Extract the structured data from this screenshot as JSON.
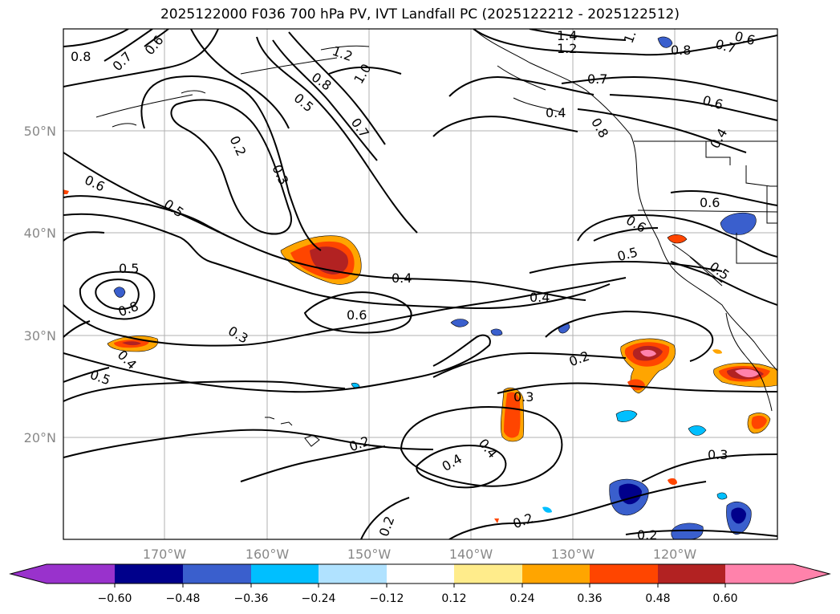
{
  "title": "2025122000 F036 700 hPa PV, IVT Landfall PC (2025122212 - 2025122512)",
  "axes": {
    "lat_labels": [
      "50°N",
      "40°N",
      "30°N",
      "20°N"
    ],
    "lon_labels": [
      "170°W",
      "160°W",
      "150°W",
      "140°W",
      "130°W",
      "120°W"
    ]
  },
  "colorbar": {
    "ticks": [
      "−0.60",
      "−0.48",
      "−0.36",
      "−0.24",
      "−0.12",
      "0.12",
      "0.24",
      "0.36",
      "0.48",
      "0.60"
    ],
    "colors": [
      "#9932cc",
      "#00008b",
      "#3a5fcd",
      "#00bfff",
      "#b0e2ff",
      "#ffffff",
      "#ffec8b",
      "#ffa500",
      "#ff4500",
      "#b22222",
      "#ff82ab"
    ]
  },
  "contour_labels": [
    "0.8",
    "0.7",
    "0.6",
    "1.2",
    "1.4",
    "1.",
    "0.8",
    "0.7",
    "0.6",
    "1.2",
    "1.0",
    "0.8",
    "0.5",
    "0.7",
    "0.2",
    "0.3",
    "0.4",
    "0.7",
    "0.6",
    "0.4",
    "0.6",
    "0.5",
    "0.6",
    "0.5",
    "0.6",
    "0.5",
    "0.4",
    "0.4",
    "0.6",
    "0.3",
    "0.5",
    "0.4",
    "0.5",
    "0.2",
    "0.3",
    "0.2",
    "0.4",
    "0.4",
    "0.2",
    "0.2",
    "0.3",
    "0.2"
  ]
}
